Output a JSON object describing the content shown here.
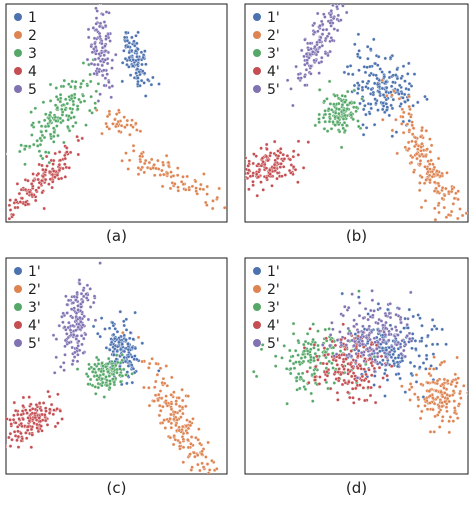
{
  "chart_data": [
    {
      "type": "scatter",
      "caption": "(a)",
      "legend": {
        "placement": "top-left",
        "entries": [
          "1",
          "2",
          "3",
          "4",
          "5"
        ]
      },
      "xlim": [
        0,
        100
      ],
      "ylim": [
        0,
        100
      ],
      "grid": false,
      "series": [
        {
          "name": "1",
          "color": "#4c72b0",
          "clusters": [
            {
              "cx": 59,
              "cy": 74,
              "sx": 3.2,
              "sy": 7.5,
              "rho": -0.6,
              "n": 110
            }
          ]
        },
        {
          "name": "2",
          "color": "#dd8452",
          "clusters": [
            {
              "cx": 52,
              "cy": 45,
              "sx": 5.5,
              "sy": 3,
              "rho": -0.5,
              "n": 35
            },
            {
              "cx": 76,
              "cy": 21,
              "sx": 12,
              "sy": 7,
              "rho": -0.88,
              "n": 90
            }
          ]
        },
        {
          "name": "3",
          "color": "#55a868",
          "clusters": [
            {
              "cx": 25,
              "cy": 50,
              "sx": 7.5,
              "sy": 9,
              "rho": 0.72,
              "n": 160
            }
          ]
        },
        {
          "name": "4",
          "color": "#c44e52",
          "clusters": [
            {
              "cx": 15,
              "cy": 18,
              "sx": 8.5,
              "sy": 8.5,
              "rho": 0.88,
              "n": 160
            }
          ]
        },
        {
          "name": "5",
          "color": "#8172b2",
          "clusters": [
            {
              "cx": 43,
              "cy": 79,
              "sx": 2.6,
              "sy": 11,
              "rho": -0.2,
              "n": 110
            }
          ]
        }
      ]
    },
    {
      "type": "scatter",
      "caption": "(b)",
      "legend": {
        "placement": "top-left",
        "entries": [
          "1'",
          "2'",
          "3'",
          "4'",
          "5'"
        ]
      },
      "xlim": [
        0,
        100
      ],
      "ylim": [
        0,
        100
      ],
      "grid": false,
      "series": [
        {
          "name": "1'",
          "color": "#4c72b0",
          "clusters": [
            {
              "cx": 62,
              "cy": 61,
              "sx": 7.5,
              "sy": 8,
              "rho": -0.25,
              "n": 190
            }
          ]
        },
        {
          "name": "2'",
          "color": "#dd8452",
          "clusters": [
            {
              "cx": 82,
              "cy": 25,
              "sx": 8.5,
              "sy": 16,
              "rho": -0.9,
              "n": 190
            }
          ]
        },
        {
          "name": "3'",
          "color": "#55a868",
          "clusters": [
            {
              "cx": 43,
              "cy": 51,
              "sx": 4.5,
              "sy": 5,
              "rho": 0.1,
              "n": 130
            }
          ]
        },
        {
          "name": "4'",
          "color": "#c44e52",
          "clusters": [
            {
              "cx": 11,
              "cy": 25,
              "sx": 7,
              "sy": 4.5,
              "rho": 0.4,
              "n": 150
            }
          ]
        },
        {
          "name": "5'",
          "color": "#8172b2",
          "clusters": [
            {
              "cx": 33,
              "cy": 82,
              "sx": 5.5,
              "sy": 10,
              "rho": 0.82,
              "n": 150
            }
          ]
        }
      ]
    },
    {
      "type": "scatter",
      "caption": "(c)",
      "legend": {
        "placement": "top-left",
        "entries": [
          "1'",
          "2'",
          "3'",
          "4'",
          "5'"
        ]
      },
      "xlim": [
        0,
        100
      ],
      "ylim": [
        0,
        100
      ],
      "grid": false,
      "series": [
        {
          "name": "1'",
          "color": "#4c72b0",
          "clusters": [
            {
              "cx": 53,
              "cy": 56,
              "sx": 4.5,
              "sy": 7,
              "rho": -0.35,
              "n": 150
            }
          ]
        },
        {
          "name": "2'",
          "color": "#dd8452",
          "clusters": [
            {
              "cx": 79,
              "cy": 23,
              "sx": 8.5,
              "sy": 15,
              "rho": -0.88,
              "n": 190
            }
          ]
        },
        {
          "name": "3'",
          "color": "#55a868",
          "clusters": [
            {
              "cx": 46,
              "cy": 46,
              "sx": 4.5,
              "sy": 3.5,
              "rho": 0.15,
              "n": 130
            }
          ]
        },
        {
          "name": "4'",
          "color": "#c44e52",
          "clusters": [
            {
              "cx": 11,
              "cy": 25,
              "sx": 6.5,
              "sy": 5,
              "rho": 0.45,
              "n": 150
            }
          ]
        },
        {
          "name": "5'",
          "color": "#8172b2",
          "clusters": [
            {
              "cx": 31,
              "cy": 71,
              "sx": 3.5,
              "sy": 11,
              "rho": 0.4,
              "n": 150
            }
          ]
        }
      ]
    },
    {
      "type": "scatter",
      "caption": "(d)",
      "legend": {
        "placement": "top-left",
        "entries": [
          "1'",
          "2'",
          "3'",
          "4'",
          "5'"
        ]
      },
      "xlim": [
        0,
        100
      ],
      "ylim": [
        0,
        100
      ],
      "grid": false,
      "series": [
        {
          "name": "1'",
          "color": "#4c72b0",
          "clusters": [
            {
              "cx": 66,
              "cy": 58,
              "sx": 9.5,
              "sy": 8,
              "rho": 0,
              "n": 200
            }
          ]
        },
        {
          "name": "2'",
          "color": "#dd8452",
          "clusters": [
            {
              "cx": 87,
              "cy": 36,
              "sx": 5.5,
              "sy": 7,
              "rho": -0.1,
              "n": 150
            }
          ]
        },
        {
          "name": "3'",
          "color": "#55a868",
          "clusters": [
            {
              "cx": 32,
              "cy": 53,
              "sx": 10,
              "sy": 7,
              "rho": 0.15,
              "n": 170
            }
          ]
        },
        {
          "name": "4'",
          "color": "#c44e52",
          "clusters": [
            {
              "cx": 46,
              "cy": 50,
              "sx": 8,
              "sy": 7.5,
              "rho": 0,
              "n": 170
            }
          ]
        },
        {
          "name": "5'",
          "color": "#8172b2",
          "clusters": [
            {
              "cx": 58,
              "cy": 65,
              "sx": 8.5,
              "sy": 8,
              "rho": 0,
              "n": 170
            }
          ]
        }
      ]
    }
  ]
}
